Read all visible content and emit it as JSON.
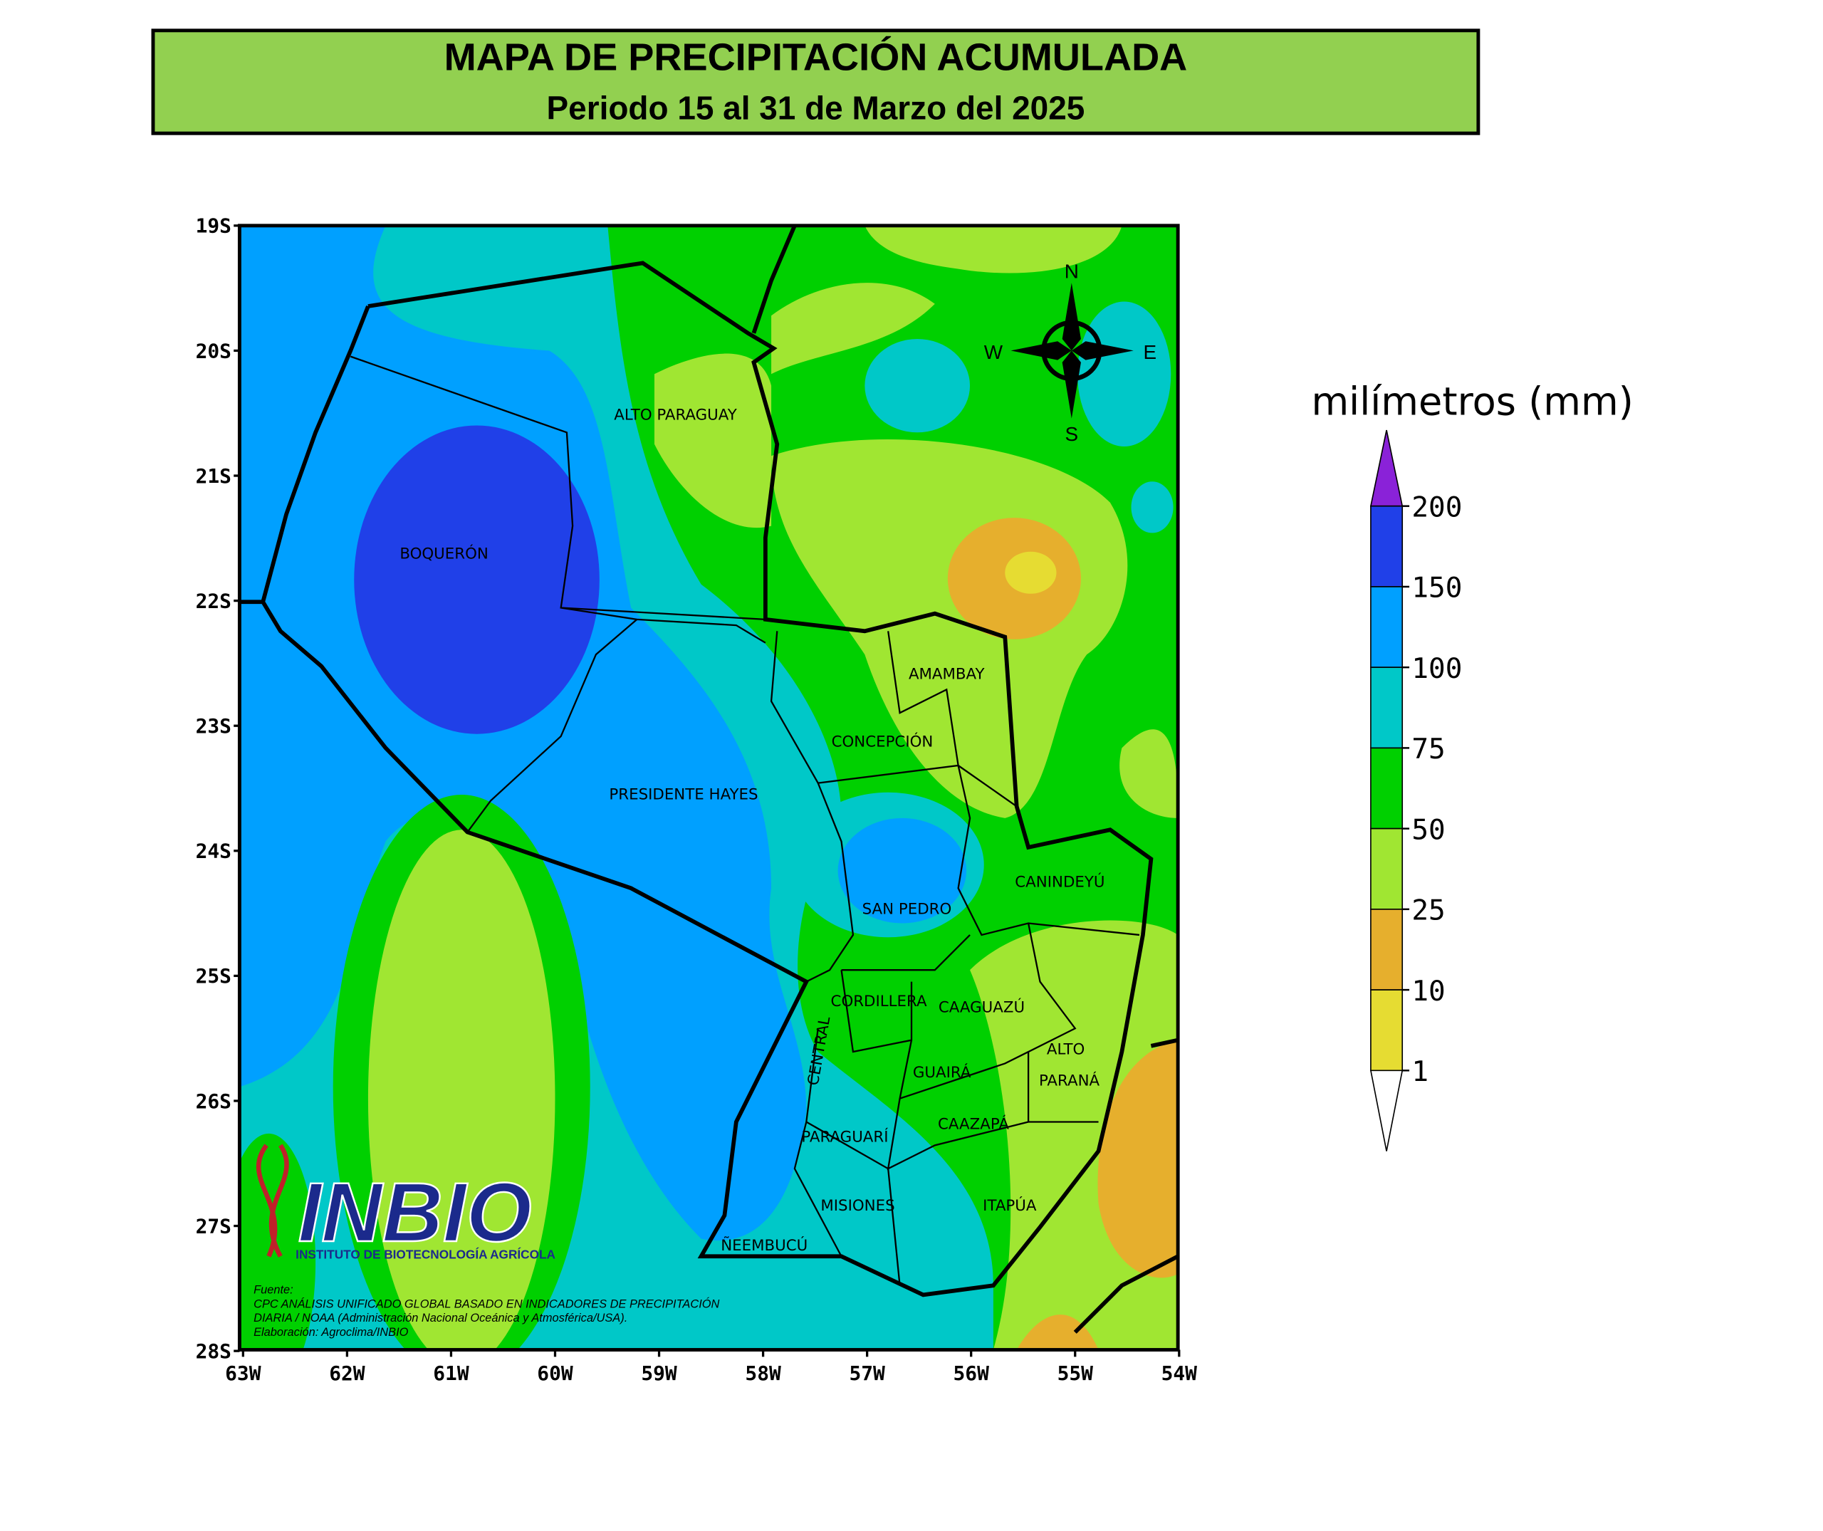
{
  "header": {
    "title": "MAPA DE PRECIPITACIÓN ACUMULADA",
    "subtitle": "Periodo 15 al 31 de Marzo del 2025"
  },
  "map": {
    "lat_labels": [
      "19S",
      "20S",
      "21S",
      "22S",
      "23S",
      "24S",
      "25S",
      "26S",
      "27S",
      "28S"
    ],
    "lon_labels": [
      "63W",
      "62W",
      "61W",
      "60W",
      "59W",
      "58W",
      "57W",
      "56W",
      "55W",
      "54W"
    ],
    "regions": [
      "ALTO PARAGUAY",
      "BOQUERÓN",
      "AMAMBAY",
      "CONCEPCIÓN",
      "PRESIDENTE HAYES",
      "CANINDEYÚ",
      "SAN PEDRO",
      "CORDILLERA",
      "CAAGUAZÚ",
      "ALTO",
      "PARANÁ",
      "GUAIRÁ",
      "CENTRAL",
      "CAAZAPÁ",
      "PARAGUARÍ",
      "MISIONES",
      "ITAPÚA",
      "ÑEEMBUCÚ"
    ],
    "compass": {
      "n": "N",
      "s": "S",
      "e": "E",
      "w": "W"
    },
    "logo": {
      "name": "INBIO",
      "full_name": "INSTITUTO DE BIOTECNOLOGÍA AGRÍCOLA"
    },
    "source": [
      "Fuente:",
      "CPC ANÁLISIS UNIFICADO GLOBAL BASADO EN INDICADORES DE PRECIPITACIÓN",
      "DIARIA / NOAA (Administración Nacional Oceánica y Atmosférica/USA).",
      "Elaboración: Agroclima/INBIO"
    ]
  },
  "legend": {
    "title": "milímetros (mm)",
    "levels": [
      200,
      150,
      100,
      75,
      50,
      25,
      10,
      1
    ],
    "colors": [
      "#8a22d8",
      "#2040e8",
      "#00a0ff",
      "#00c8c8",
      "#00d000",
      "#a0e632",
      "#e6af2d",
      "#e6dc32",
      "#ffffff"
    ]
  }
}
